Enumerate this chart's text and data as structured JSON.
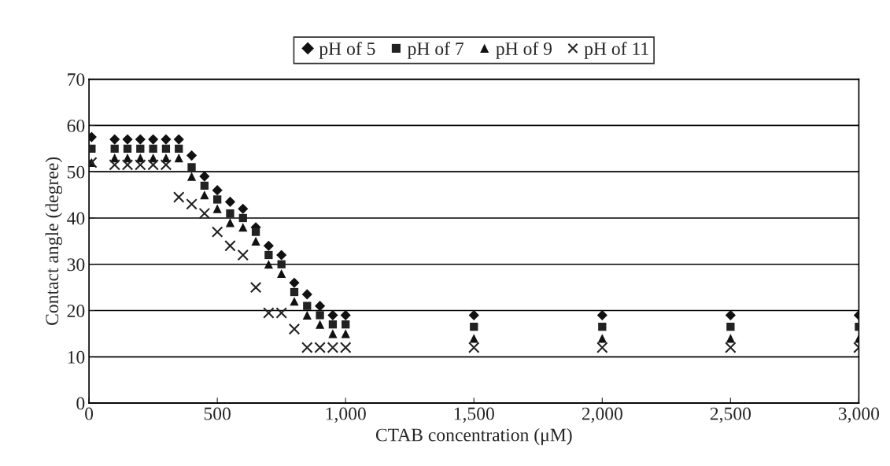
{
  "chart_data": {
    "type": "scatter",
    "xlabel": "CTAB concentration (μM)",
    "ylabel": "Contact angle (degree)",
    "x": [
      10,
      100,
      150,
      200,
      250,
      300,
      350,
      400,
      450,
      500,
      550,
      600,
      650,
      700,
      750,
      800,
      850,
      900,
      950,
      1000,
      1500,
      2000,
      2500,
      3000
    ],
    "series": [
      {
        "name": "pH of 5",
        "color": "#111111",
        "marker": "diamond",
        "values": [
          57.5,
          57,
          57,
          57,
          57,
          57,
          57,
          53.5,
          49,
          46,
          43.5,
          42,
          38,
          34,
          32,
          26,
          23.5,
          21,
          19,
          19,
          19,
          19,
          19,
          19
        ]
      },
      {
        "name": "pH of 7",
        "color": "#222222",
        "marker": "square",
        "values": [
          55,
          55,
          55,
          55,
          55,
          55,
          55,
          51,
          47,
          44,
          41,
          40,
          37,
          32,
          30,
          24,
          21,
          19,
          17,
          17,
          16.5,
          16.5,
          16.5,
          16.5
        ]
      },
      {
        "name": "pH of 9",
        "color": "#111111",
        "marker": "triangle",
        "values": [
          52,
          53,
          53,
          53,
          53,
          53,
          53,
          49,
          45,
          42,
          39,
          38,
          35,
          30,
          28,
          22,
          19,
          17,
          15,
          15,
          14,
          14,
          14,
          14
        ]
      },
      {
        "name": "pH of 11",
        "color": "#222222",
        "marker": "cross",
        "values": [
          52,
          51.5,
          51.5,
          51.5,
          51.5,
          51.5,
          44.5,
          43,
          41,
          37,
          34,
          32,
          25,
          19.5,
          19.5,
          16,
          12,
          12,
          12,
          12,
          12,
          12,
          12,
          12
        ]
      }
    ],
    "xlim": [
      0,
      3000
    ],
    "ylim": [
      0,
      70
    ],
    "xticks": [
      0,
      {
        "value": 500,
        "label": "500"
      },
      {
        "value": 1000,
        "label": "1,000"
      },
      {
        "value": 1500,
        "label": "1,500"
      },
      {
        "value": 2000,
        "label": "2,000"
      },
      {
        "value": 2500,
        "label": "2,500"
      },
      {
        "value": 3000,
        "label": "3,000"
      }
    ],
    "yticks": [
      0,
      10,
      20,
      30,
      40,
      50,
      60,
      70
    ],
    "grid": "y",
    "legend": "top"
  }
}
